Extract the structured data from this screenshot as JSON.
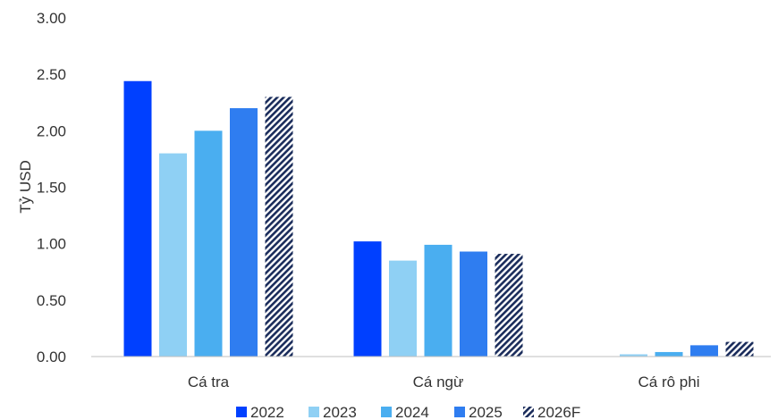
{
  "chart_data": {
    "type": "bar",
    "title": "",
    "xlabel": "",
    "ylabel": "Tỷ USD",
    "ylim": [
      0,
      3
    ],
    "yticks": [
      "0.00",
      "0.50",
      "1.00",
      "1.50",
      "2.00",
      "2.50",
      "3.00"
    ],
    "yticks_values": [
      0,
      0.5,
      1,
      1.5,
      2,
      2.5,
      3
    ],
    "grid": false,
    "legend_position": "bottom",
    "categories": [
      "Cá tra",
      "Cá ngừ",
      "Cá rô phi"
    ],
    "series": [
      {
        "name": "2022",
        "color": "#0040ff",
        "pattern": "solid",
        "values": [
          2.44,
          1.02,
          0.0
        ]
      },
      {
        "name": "2023",
        "color": "#8fd0f4",
        "pattern": "solid",
        "values": [
          1.8,
          0.85,
          0.02
        ]
      },
      {
        "name": "2024",
        "color": "#4aaef0",
        "pattern": "solid",
        "values": [
          2.0,
          0.99,
          0.04
        ]
      },
      {
        "name": "2025",
        "color": "#2f7df0",
        "pattern": "solid",
        "values": [
          2.2,
          0.93,
          0.1
        ]
      },
      {
        "name": "2026F",
        "color": "#1a2c5b",
        "pattern": "hatched",
        "values": [
          2.3,
          0.91,
          0.13
        ]
      }
    ]
  }
}
